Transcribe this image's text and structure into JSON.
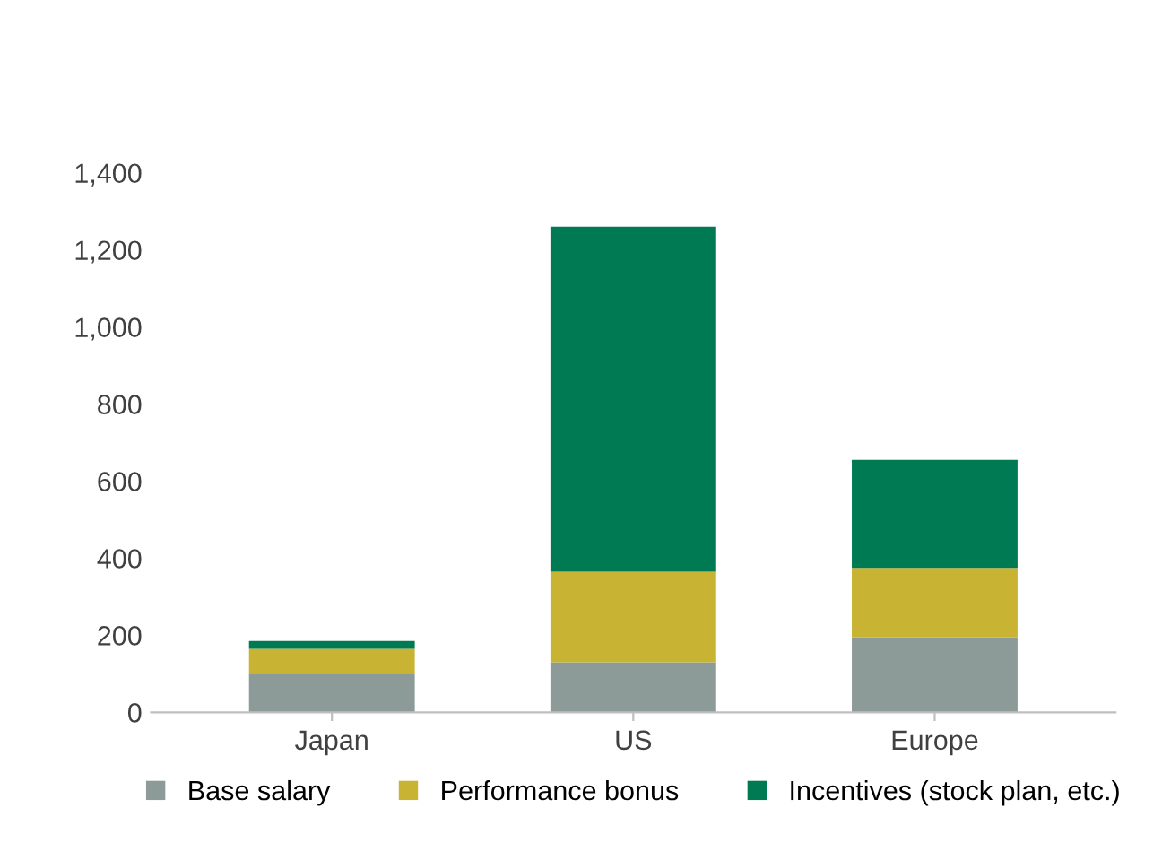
{
  "chart_data": {
    "type": "bar",
    "stacked": true,
    "categories": [
      "Japan",
      "US",
      "Europe"
    ],
    "series": [
      {
        "name": "Base salary",
        "color": "#8c9a98",
        "values": [
          100,
          130,
          195
        ]
      },
      {
        "name": "Performance bonus",
        "color": "#c8b432",
        "values": [
          65,
          235,
          180
        ]
      },
      {
        "name": "Incentives (stock plan, etc.)",
        "color": "#007a53",
        "values": [
          20,
          895,
          280
        ]
      }
    ],
    "ylim": [
      0,
      1400
    ],
    "yticks": [
      0,
      {
        "value": 200,
        "label": "200"
      },
      {
        "value": 400,
        "label": "400"
      },
      {
        "value": 600,
        "label": "600"
      },
      {
        "value": 800,
        "label": "800"
      },
      {
        "value": 1000,
        "label": "1,000"
      },
      {
        "value": 1200,
        "label": "1,200"
      },
      {
        "value": 1400,
        "label": "1,400"
      }
    ],
    "grid": false,
    "legend": "bottom"
  }
}
